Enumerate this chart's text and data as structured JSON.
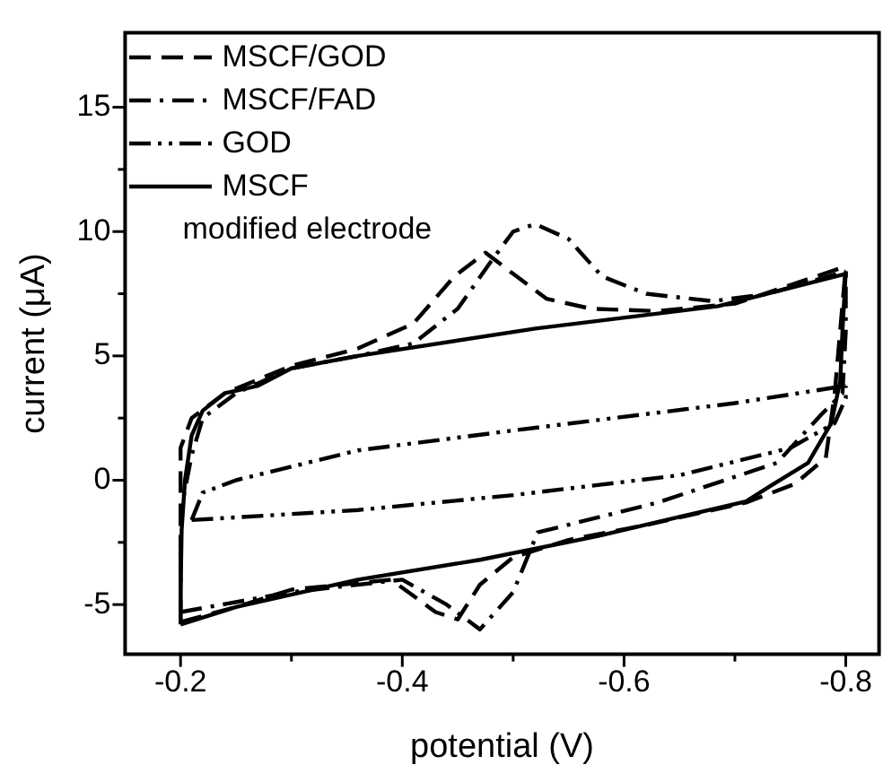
{
  "chart_data": {
    "type": "line",
    "xlabel": "potential (V)",
    "ylabel": "current (μA)",
    "xlim": [
      -0.15,
      -0.83
    ],
    "ylim": [
      -7,
      18
    ],
    "xticks": [
      -0.2,
      {
        "value": -0.3,
        "label": null
      },
      -0.4,
      {
        "value": -0.5,
        "label": null
      },
      -0.6,
      {
        "value": -0.7,
        "label": null
      },
      -0.8
    ],
    "yticks": [
      -5,
      {
        "value": -2.5,
        "label": null
      },
      0,
      {
        "value": 2.5,
        "label": null
      },
      5,
      {
        "value": 7.5,
        "label": null
      },
      10,
      {
        "value": 12.5,
        "label": null
      },
      15
    ],
    "grid": false,
    "legend": "top left",
    "marker": "none",
    "annotations": [
      "modified electrode"
    ],
    "series": [
      {
        "name": "MSCF/GOD",
        "color": "#000000",
        "line_style": "dashed",
        "x": [
          -0.2,
          -0.2,
          -0.2,
          -0.21,
          -0.24,
          -0.3,
          -0.36,
          -0.41,
          -0.447,
          -0.475,
          -0.5,
          -0.53,
          -0.57,
          -0.63,
          -0.7,
          -0.8
        ],
        "values": [
          -5.7,
          -3,
          1.3,
          2.5,
          3.5,
          4.6,
          5.3,
          6.3,
          8.2,
          9.15,
          8.3,
          7.3,
          6.9,
          6.8,
          7.1,
          8.6
        ]
      },
      {
        "color": "#000000",
        "line_style": "dashed",
        "x": [
          -0.2,
          -0.25,
          -0.3,
          -0.39,
          -0.43,
          -0.45,
          -0.47,
          -0.5,
          -0.55,
          -0.62,
          -0.71,
          -0.754,
          -0.782,
          -0.79,
          -0.8
        ],
        "values": [
          -5.7,
          -5.1,
          -4.4,
          -4,
          -5.3,
          -5.6,
          -4.2,
          -3.1,
          -2.4,
          -1.8,
          -0.9,
          -0.15,
          0.9,
          3.5,
          8.6
        ]
      },
      {
        "name": "MSCF/FAD",
        "color": "#000000",
        "line_style": "dashdot",
        "x": [
          -0.2,
          -0.2,
          -0.21,
          -0.22,
          -0.25,
          -0.3,
          -0.36,
          -0.41,
          -0.45,
          -0.48,
          -0.5,
          -0.52,
          -0.55,
          -0.58,
          -0.62,
          -0.68,
          -0.73,
          -0.8
        ],
        "values": [
          -5.3,
          -1.3,
          1,
          2.5,
          3.5,
          4.5,
          5,
          5.5,
          6.9,
          8.8,
          10,
          10.3,
          9.7,
          8.2,
          7.5,
          7.2,
          7.5,
          8.4
        ]
      },
      {
        "color": "#000000",
        "line_style": "dashdot",
        "x": [
          -0.2,
          -0.3,
          -0.4,
          -0.44,
          -0.47,
          -0.5,
          -0.522,
          -0.63,
          -0.738,
          -0.777,
          -0.797,
          -0.8,
          -0.8
        ],
        "values": [
          -5.3,
          -4.5,
          -4,
          -5,
          -6,
          -4.5,
          -2.1,
          -0.9,
          0.7,
          2.6,
          3.5,
          6,
          8.4
        ]
      },
      {
        "name": "GOD",
        "color": "#000000",
        "line_style": "dashdotdot",
        "x": [
          -0.21,
          -0.22,
          -0.25,
          -0.36,
          -0.5,
          -0.7,
          -0.8
        ],
        "values": [
          -1.6,
          -0.5,
          0,
          1.2,
          2,
          3.1,
          3.8
        ]
      },
      {
        "color": "#000000",
        "line_style": "dashdotdot",
        "x": [
          -0.21,
          -0.36,
          -0.5,
          -0.65,
          -0.75,
          -0.79,
          -0.8,
          -0.8
        ],
        "values": [
          -1.6,
          -1.2,
          -0.6,
          0.2,
          1.3,
          2.3,
          3.3,
          3.8
        ]
      },
      {
        "name": "MSCF",
        "color": "#000000",
        "line_style": "solid",
        "x": [
          -0.2,
          -0.2,
          -0.201,
          -0.204,
          -0.21,
          -0.22,
          -0.24,
          -0.27,
          -0.3,
          -0.36,
          -0.52,
          -0.685,
          -0.8,
          -0.8
        ],
        "values": [
          -5.8,
          -4.6,
          -2,
          0,
          1.8,
          2.8,
          3.5,
          3.8,
          4.5,
          5,
          6.1,
          7,
          8.3,
          8.4
        ]
      },
      {
        "color": "#000000",
        "line_style": "solid",
        "x": [
          -0.2,
          -0.25,
          -0.36,
          -0.47,
          -0.576,
          -0.71,
          -0.733,
          -0.766,
          -0.787,
          -0.795,
          -0.797,
          -0.8
        ],
        "values": [
          -5.8,
          -5.1,
          -4,
          -3.2,
          -2.25,
          -0.85,
          -0.2,
          0.7,
          2.3,
          4,
          6,
          8.4
        ]
      }
    ]
  }
}
